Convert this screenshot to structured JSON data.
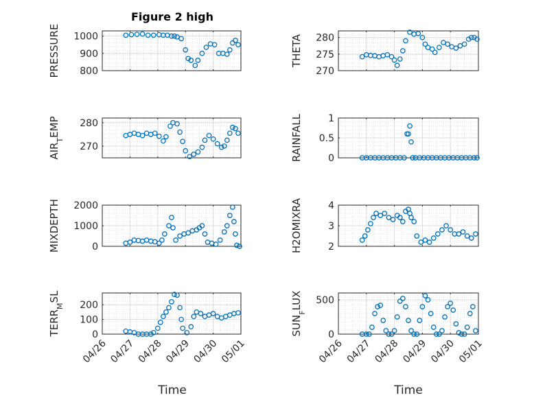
{
  "figure": {
    "title": "Figure 2 high",
    "marker_color": "#0072BD",
    "grid": "minor-dotted"
  },
  "chart_data": [
    {
      "type": "scatter",
      "id": "pressure",
      "ylabel": "PRESSURE",
      "ylim": [
        800,
        1030
      ],
      "yticks": [
        "800",
        "900",
        "1000"
      ],
      "yticks_values": [
        800,
        900,
        1000
      ],
      "xlim": [
        0,
        5
      ],
      "xticks": [
        "04/26",
        "04/27",
        "04/28",
        "04/29",
        "04/30",
        "05/01"
      ],
      "x": [
        0.85,
        1.05,
        1.25,
        1.45,
        1.65,
        1.85,
        2.05,
        2.2,
        2.35,
        2.5,
        2.6,
        2.7,
        2.85,
        3.0,
        3.1,
        3.2,
        3.35,
        3.45,
        3.6,
        3.75,
        3.9,
        4.05,
        4.2,
        4.35,
        4.5,
        4.6,
        4.7,
        4.8,
        4.9
      ],
      "y": [
        1005,
        1008,
        1010,
        1012,
        1005,
        1005,
        1008,
        1005,
        1005,
        1000,
        1000,
        995,
        985,
        920,
        870,
        860,
        830,
        860,
        900,
        935,
        955,
        950,
        900,
        900,
        895,
        920,
        960,
        975,
        950
      ]
    },
    {
      "type": "scatter",
      "id": "theta",
      "ylabel": "THETA",
      "ylim": [
        270,
        282
      ],
      "yticks": [
        "270",
        "275",
        "280"
      ],
      "yticks_values": [
        270,
        275,
        280
      ],
      "xlim": [
        0,
        5
      ],
      "xticks": [
        "04/26",
        "04/27",
        "04/28",
        "04/29",
        "04/30",
        "05/01"
      ],
      "x": [
        0.85,
        1.0,
        1.15,
        1.3,
        1.45,
        1.6,
        1.75,
        1.9,
        2.0,
        2.1,
        2.2,
        2.3,
        2.4,
        2.55,
        2.7,
        2.85,
        3.0,
        3.1,
        3.2,
        3.35,
        3.45,
        3.6,
        3.75,
        3.9,
        4.05,
        4.2,
        4.35,
        4.5,
        4.65,
        4.75,
        4.85,
        4.95
      ],
      "y": [
        274.2,
        274.8,
        274.6,
        274.5,
        274.2,
        274.5,
        274.8,
        274.2,
        273.2,
        271.6,
        273.5,
        276.0,
        279.0,
        281.6,
        281.0,
        281.2,
        280.0,
        278.0,
        277.0,
        276.5,
        275.5,
        277.0,
        278.5,
        278.0,
        277.2,
        276.8,
        277.5,
        278.0,
        279.5,
        280.0,
        280.0,
        279.5
      ]
    },
    {
      "type": "scatter",
      "id": "air_temp",
      "ylabel": "AIR_TEMP",
      "ylim": [
        265,
        282
      ],
      "yticks": [
        "270",
        "280"
      ],
      "yticks_values": [
        270,
        280
      ],
      "xlim": [
        0,
        5
      ],
      "xticks": [
        "04/26",
        "04/27",
        "04/28",
        "04/29",
        "04/30",
        "05/01"
      ],
      "x": [
        0.85,
        1.0,
        1.15,
        1.3,
        1.45,
        1.6,
        1.75,
        1.9,
        2.05,
        2.2,
        2.3,
        2.45,
        2.55,
        2.7,
        2.8,
        2.9,
        3.0,
        3.15,
        3.3,
        3.45,
        3.6,
        3.7,
        3.85,
        4.0,
        4.15,
        4.3,
        4.4,
        4.5,
        4.6,
        4.7,
        4.8,
        4.9
      ],
      "y": [
        274.5,
        275.0,
        275.5,
        275.0,
        274.5,
        275.5,
        275.0,
        275.5,
        274.2,
        272.2,
        274.0,
        278.5,
        280.0,
        279.5,
        276.0,
        272.0,
        268.0,
        265.5,
        266.5,
        267.5,
        269.5,
        272.5,
        274.5,
        273.0,
        271.0,
        269.5,
        270.0,
        272.5,
        275.5,
        278.0,
        277.5,
        275.5
      ]
    },
    {
      "type": "scatter",
      "id": "rainfall",
      "ylabel": "RAINFALL",
      "ylim": [
        0,
        1
      ],
      "yticks": [
        "0",
        "0.5",
        "1"
      ],
      "yticks_values": [
        0,
        0.5,
        1
      ],
      "xlim": [
        0,
        5
      ],
      "xticks": [
        "04/26",
        "04/27",
        "04/28",
        "04/29",
        "04/30",
        "05/01"
      ],
      "x": [
        0.85,
        1.0,
        1.15,
        1.3,
        1.45,
        1.6,
        1.75,
        1.9,
        2.05,
        2.2,
        2.35,
        2.45,
        2.5,
        2.55,
        2.6,
        2.65,
        2.75,
        2.9,
        3.05,
        3.2,
        3.35,
        3.5,
        3.65,
        3.8,
        3.95,
        4.1,
        4.25,
        4.4,
        4.55,
        4.7,
        4.85,
        4.95
      ],
      "y": [
        0,
        0,
        0,
        0,
        0,
        0,
        0,
        0,
        0,
        0,
        0,
        0.6,
        0.6,
        0.8,
        0.4,
        0,
        0,
        0,
        0,
        0,
        0,
        0,
        0,
        0,
        0,
        0,
        0,
        0,
        0,
        0,
        0,
        0
      ]
    },
    {
      "type": "scatter",
      "id": "mixdepth",
      "ylabel": "MIXDEPTH",
      "ylim": [
        0,
        2000
      ],
      "yticks": [
        "0",
        "1000",
        "2000"
      ],
      "yticks_values": [
        0,
        1000,
        2000
      ],
      "xlim": [
        0,
        5
      ],
      "xticks": [
        "04/26",
        "04/27",
        "04/28",
        "04/29",
        "04/30",
        "05/01"
      ],
      "x": [
        0.85,
        1.0,
        1.15,
        1.3,
        1.45,
        1.6,
        1.75,
        1.9,
        2.05,
        2.15,
        2.25,
        2.4,
        2.5,
        2.55,
        2.65,
        2.8,
        2.95,
        3.1,
        3.25,
        3.4,
        3.5,
        3.6,
        3.7,
        3.8,
        3.95,
        4.1,
        4.25,
        4.4,
        4.5,
        4.6,
        4.7,
        4.75,
        4.8,
        4.85,
        4.95
      ],
      "y": [
        150,
        200,
        300,
        280,
        250,
        300,
        250,
        220,
        150,
        300,
        600,
        1000,
        1400,
        900,
        300,
        500,
        600,
        650,
        750,
        800,
        900,
        1000,
        600,
        200,
        150,
        100,
        300,
        700,
        1000,
        1500,
        1900,
        1200,
        600,
        50,
        0
      ]
    },
    {
      "type": "scatter",
      "id": "h2omixra",
      "ylabel": "H2OMIXRA",
      "ylim": [
        2,
        4
      ],
      "yticks": [
        "2",
        "3",
        "4"
      ],
      "yticks_values": [
        2,
        3,
        4
      ],
      "xlim": [
        0,
        5
      ],
      "xticks": [
        "04/26",
        "04/27",
        "04/28",
        "04/29",
        "04/30",
        "05/01"
      ],
      "x": [
        0.85,
        0.95,
        1.05,
        1.15,
        1.25,
        1.35,
        1.5,
        1.65,
        1.8,
        1.95,
        2.1,
        2.2,
        2.3,
        2.4,
        2.5,
        2.55,
        2.6,
        2.7,
        2.8,
        2.95,
        3.1,
        3.25,
        3.4,
        3.55,
        3.7,
        3.85,
        4.0,
        4.15,
        4.3,
        4.45,
        4.6,
        4.75,
        4.9
      ],
      "y": [
        2.3,
        2.5,
        2.8,
        3.1,
        3.4,
        3.6,
        3.5,
        3.6,
        3.4,
        3.3,
        3.5,
        3.4,
        3.2,
        3.7,
        3.8,
        3.6,
        3.4,
        3.2,
        2.5,
        2.2,
        2.3,
        2.2,
        2.4,
        2.6,
        2.8,
        3.0,
        2.8,
        2.6,
        2.6,
        2.7,
        2.5,
        2.4,
        2.6
      ]
    },
    {
      "type": "scatter",
      "id": "terr_msl",
      "ylabel": "TERR_MSL",
      "ylim": [
        0,
        280
      ],
      "yticks": [
        "0",
        "100",
        "200"
      ],
      "yticks_values": [
        0,
        100,
        200
      ],
      "xlim": [
        0,
        5
      ],
      "xticks": [
        "04/26",
        "04/27",
        "04/28",
        "04/29",
        "04/30",
        "05/01"
      ],
      "x": [
        0.85,
        1.0,
        1.15,
        1.3,
        1.45,
        1.6,
        1.75,
        1.85,
        2.0,
        2.1,
        2.2,
        2.3,
        2.4,
        2.5,
        2.6,
        2.7,
        2.8,
        2.85,
        2.9,
        3.05,
        3.2,
        3.3,
        3.4,
        3.55,
        3.7,
        3.85,
        4.0,
        4.15,
        4.3,
        4.45,
        4.6,
        4.75,
        4.9
      ],
      "y": [
        20,
        15,
        10,
        0,
        0,
        0,
        0,
        10,
        40,
        80,
        120,
        150,
        180,
        220,
        270,
        265,
        180,
        100,
        40,
        10,
        50,
        120,
        150,
        140,
        120,
        130,
        140,
        120,
        110,
        120,
        130,
        140,
        145
      ]
    },
    {
      "type": "scatter",
      "id": "sun_flux",
      "ylabel": "SUN_FLUX",
      "ylim": [
        0,
        600
      ],
      "yticks": [
        "0",
        "500"
      ],
      "yticks_values": [
        0,
        500
      ],
      "xlim": [
        0,
        5
      ],
      "xticks": [
        "04/26",
        "04/27",
        "04/28",
        "04/29",
        "04/30",
        "05/01"
      ],
      "x": [
        0.85,
        1.0,
        1.1,
        1.2,
        1.3,
        1.4,
        1.5,
        1.6,
        1.7,
        1.8,
        1.9,
        2.0,
        2.1,
        2.2,
        2.3,
        2.4,
        2.5,
        2.6,
        2.7,
        2.8,
        2.9,
        3.0,
        3.1,
        3.2,
        3.3,
        3.4,
        3.5,
        3.6,
        3.7,
        3.8,
        3.9,
        4.0,
        4.1,
        4.2,
        4.3,
        4.4,
        4.5,
        4.6,
        4.7,
        4.8,
        4.9
      ],
      "y": [
        0,
        0,
        0,
        100,
        300,
        400,
        420,
        200,
        50,
        0,
        0,
        50,
        250,
        480,
        520,
        400,
        200,
        50,
        0,
        0,
        200,
        400,
        560,
        500,
        300,
        100,
        0,
        0,
        50,
        250,
        400,
        450,
        350,
        150,
        20,
        0,
        0,
        100,
        300,
        400,
        50
      ]
    }
  ],
  "layout_labels": {
    "xlabel_left": "Time",
    "xlabel_right": "Time"
  }
}
